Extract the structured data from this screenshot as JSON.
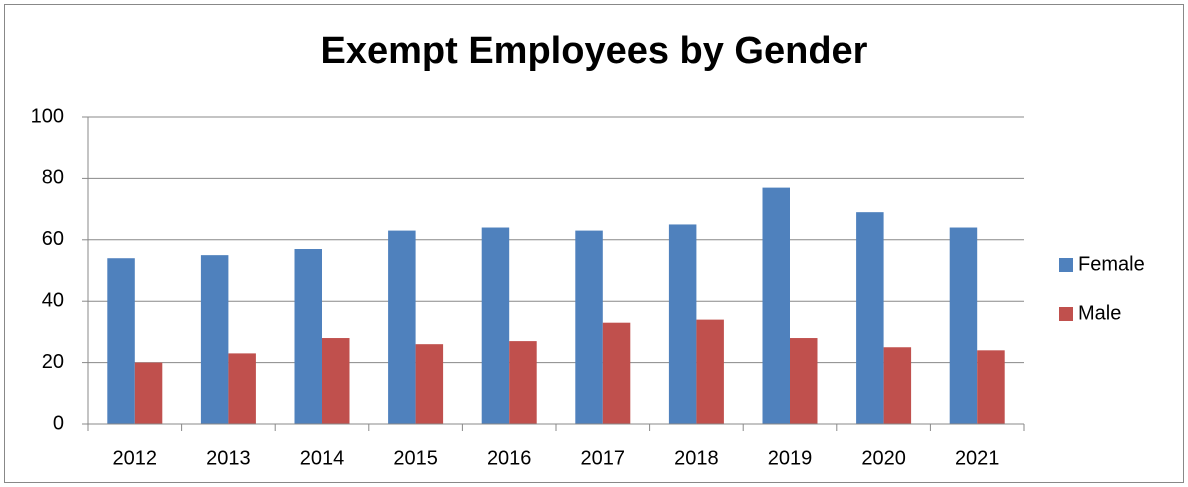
{
  "chart_data": {
    "type": "bar",
    "title": "Exempt Employees by Gender",
    "categories": [
      "2012",
      "2013",
      "2014",
      "2015",
      "2016",
      "2017",
      "2018",
      "2019",
      "2020",
      "2021"
    ],
    "series": [
      {
        "name": "Female",
        "color": "#4f81bd",
        "values": [
          54,
          55,
          57,
          63,
          64,
          63,
          65,
          77,
          69,
          64
        ]
      },
      {
        "name": "Male",
        "color": "#c0504d",
        "values": [
          20,
          23,
          28,
          26,
          27,
          33,
          34,
          28,
          25,
          24
        ]
      }
    ],
    "ylim": [
      0,
      100
    ],
    "yticks": [
      0,
      20,
      40,
      60,
      80,
      100
    ],
    "grid": true,
    "legend": "right"
  }
}
